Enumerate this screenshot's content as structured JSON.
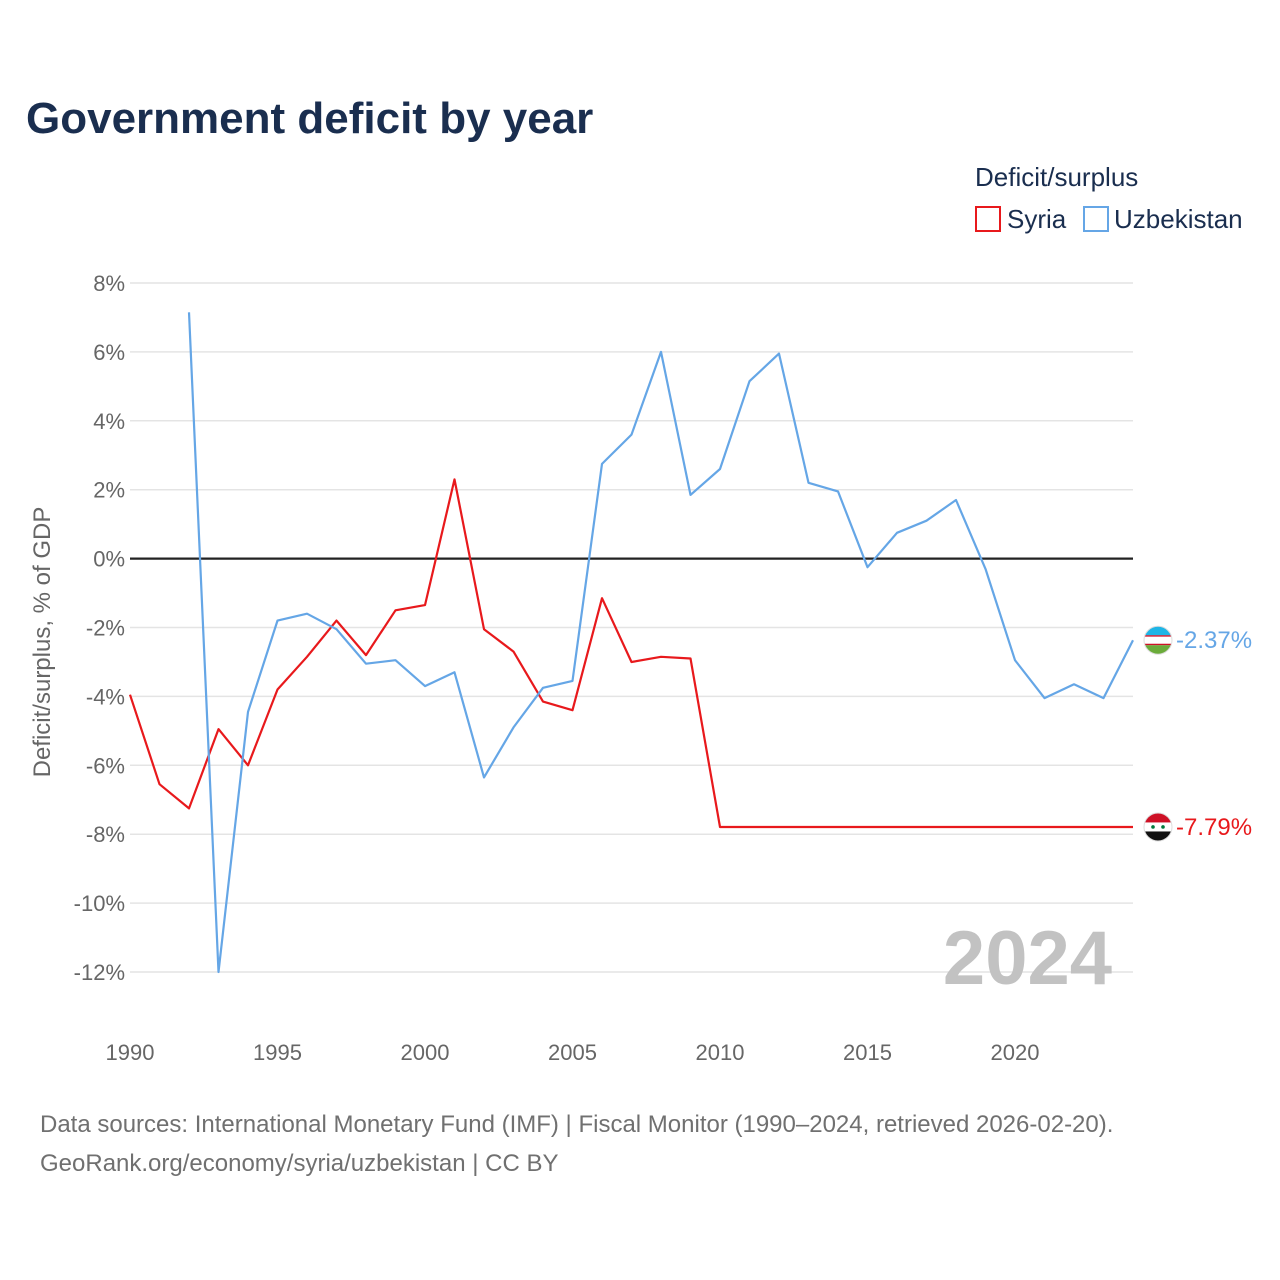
{
  "header": {
    "title": "Government deficit by year"
  },
  "legend": {
    "title": "Deficit/surplus"
  },
  "colors": {
    "syria": "#e8191c",
    "uzbekistan": "#65a6e6",
    "zero_line": "#222222",
    "grid": "#e4e4e4"
  },
  "chart_data": {
    "type": "line",
    "ylabel": "Deficit/surplus, % of GDP",
    "xlabel": "",
    "xlim": [
      1990,
      2024
    ],
    "ylim": [
      -12,
      8
    ],
    "y_ticks": [
      8,
      6,
      4,
      2,
      0,
      -2,
      -4,
      -6,
      -8,
      -10,
      -12
    ],
    "y_tick_labels": [
      "8%",
      "6%",
      "4%",
      "2%",
      "0%",
      "-2%",
      "-4%",
      "-6%",
      "-8%",
      "-10%",
      "-12%"
    ],
    "x_ticks": [
      1990,
      1995,
      2000,
      2005,
      2010,
      2015,
      2020
    ],
    "x_tick_labels": [
      "1990",
      "1995",
      "2000",
      "2005",
      "2010",
      "2015",
      "2020"
    ],
    "year_watermark": "2024",
    "series": [
      {
        "name": "Syria",
        "color": "#e8191c",
        "end_label": "-7.79%",
        "points": [
          [
            1990,
            -3.95
          ],
          [
            1991,
            -6.55
          ],
          [
            1992,
            -7.25
          ],
          [
            1993,
            -4.95
          ],
          [
            1994,
            -6.0
          ],
          [
            1995,
            -3.8
          ],
          [
            1996,
            -2.85
          ],
          [
            1997,
            -1.8
          ],
          [
            1998,
            -2.8
          ],
          [
            1999,
            -1.5
          ],
          [
            2000,
            -1.35
          ],
          [
            2001,
            2.3
          ],
          [
            2002,
            -2.05
          ],
          [
            2003,
            -2.7
          ],
          [
            2004,
            -4.15
          ],
          [
            2005,
            -4.4
          ],
          [
            2006,
            -1.15
          ],
          [
            2007,
            -3.0
          ],
          [
            2008,
            -2.85
          ],
          [
            2009,
            -2.9
          ],
          [
            2010,
            -7.79
          ],
          [
            2024,
            -7.79
          ]
        ]
      },
      {
        "name": "Uzbekistan",
        "color": "#65a6e6",
        "end_label": "-2.37%",
        "points": [
          [
            1992,
            7.15
          ],
          [
            1993,
            -12.0
          ],
          [
            1994,
            -4.45
          ],
          [
            1995,
            -1.8
          ],
          [
            1996,
            -1.6
          ],
          [
            1997,
            -2.05
          ],
          [
            1998,
            -3.05
          ],
          [
            1999,
            -2.95
          ],
          [
            2000,
            -3.7
          ],
          [
            2001,
            -3.3
          ],
          [
            2002,
            -6.35
          ],
          [
            2003,
            -4.9
          ],
          [
            2004,
            -3.75
          ],
          [
            2005,
            -3.55
          ],
          [
            2006,
            2.75
          ],
          [
            2007,
            3.6
          ],
          [
            2008,
            6.0
          ],
          [
            2009,
            1.85
          ],
          [
            2010,
            2.6
          ],
          [
            2011,
            5.15
          ],
          [
            2012,
            5.95
          ],
          [
            2013,
            2.2
          ],
          [
            2014,
            1.95
          ],
          [
            2015,
            -0.25
          ],
          [
            2016,
            0.75
          ],
          [
            2017,
            1.1
          ],
          [
            2018,
            1.7
          ],
          [
            2019,
            -0.3
          ],
          [
            2020,
            -2.95
          ],
          [
            2021,
            -4.05
          ],
          [
            2022,
            -3.65
          ],
          [
            2023,
            -4.05
          ],
          [
            2024,
            -2.37
          ]
        ]
      }
    ]
  },
  "footer": {
    "source_line": "Data sources: International Monetary Fund (IMF) | Fiscal Monitor (1990–2024, retrieved 2026-02-20).",
    "credit_line": "GeoRank.org/economy/syria/uzbekistan | CC BY"
  }
}
